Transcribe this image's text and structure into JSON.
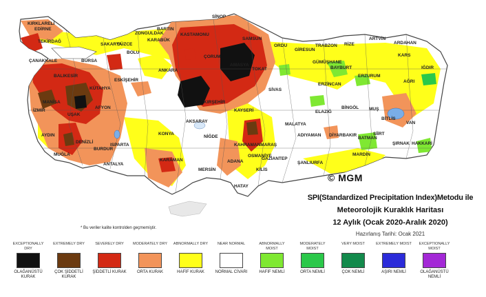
{
  "map": {
    "cities": [
      "SİNOP",
      "KIRKLARELİ",
      "EDİRNE",
      "TEKİRDAĞ",
      "BARTIN",
      "ZONGULDAK",
      "KASTAMONU",
      "KARABÜK",
      "SAMSUN",
      "ORDU",
      "RİZE",
      "ARTVİN",
      "TRABZON",
      "GİRESUN",
      "GÜMÜŞHANE",
      "BAYBURT",
      "KARS",
      "ARDAHAN",
      "SAKARYA",
      "DÜZCE",
      "BOLU",
      "ÇANAKKALE",
      "BALIKESİR",
      "BURSA",
      "ANKARA",
      "ÇORUM",
      "AMASYA",
      "TOKAT",
      "SİVAS",
      "ERZİNCAN",
      "ERZURUM",
      "AĞRI",
      "IĞDIR",
      "BİNGÖL",
      "MUŞ",
      "VAN",
      "BİTLİS",
      "HAKKARİ",
      "ŞIRNAK",
      "SİİRT",
      "BATMAN",
      "MARDİN",
      "DİYARBAKIR",
      "ŞANLIURFA",
      "ADIYAMAN",
      "MALATYA",
      "ELAZIĞ",
      "KAYSERİ",
      "NİĞDE",
      "AKSARAY",
      "KIRŞEHİR",
      "KONYA",
      "KARAMAN",
      "MERSİN",
      "ADANA",
      "OSMANİYE",
      "GAZİANTEP",
      "KAHRAMANMARAŞ",
      "HATAY",
      "KİLİS",
      "AFYON",
      "MANİSA",
      "İZMİR",
      "AYDIN",
      "MUĞLA",
      "DENİZLİ",
      "BURDUR",
      "ISPARTA",
      "ANTALYA",
      "ESKİŞEHİR",
      "KÜTAHYA",
      "UŞAK"
    ]
  },
  "branding": {
    "logo_text": "MGM",
    "copyright_symbol": "©"
  },
  "title": {
    "line1": "SPI(Standardized Precipitation Index)Metodu ile",
    "line2": "Meteorolojik Kuraklık Haritası",
    "line3": "12 Aylık (Ocak 2020-Aralık 2020)",
    "line4": "Hazırlanış Tarihi: Ocak 2021"
  },
  "note": "* Bu veriler kalite kontrolden geçmemiştir.",
  "legend": {
    "items": [
      {
        "en": "EXCEPTIONALLY DRY",
        "tr": "OLAĞANÜSTÜ KURAK",
        "color": "#111111"
      },
      {
        "en": "EXTREMELY DRY",
        "tr": "ÇOK ŞİDDETLİ KURAK",
        "color": "#6b3a10"
      },
      {
        "en": "SEVERELY DRY",
        "tr": "ŞİDDETLİ KURAK",
        "color": "#d32914"
      },
      {
        "en": "MODERATELY DRY",
        "tr": "ORTA KURAK",
        "color": "#f2945a"
      },
      {
        "en": "ABNORMALLY DRY",
        "tr": "HAFİF KURAK",
        "color": "#ffff1a"
      },
      {
        "en": "NEAR NORMAL",
        "tr": "NORMAL CİVARI",
        "color": "#ffffff"
      },
      {
        "en": "ABNORMALLY MOIST",
        "tr": "HAFİF NEMLİ",
        "color": "#7fe832"
      },
      {
        "en": "MODERATELY MOIST",
        "tr": "ORTA NEMLİ",
        "color": "#2bc84a"
      },
      {
        "en": "VERY MOIST",
        "tr": "ÇOK NEMLİ",
        "color": "#138a4c"
      },
      {
        "en": "EXTREMELY MOIST",
        "tr": "AŞIRI NEMLİ",
        "color": "#2b2bd9"
      },
      {
        "en": "EXCEPTIONALLY MOIST",
        "tr": "OLAĞANÜSTÜ NEMLİ",
        "color": "#a328d6"
      }
    ]
  }
}
